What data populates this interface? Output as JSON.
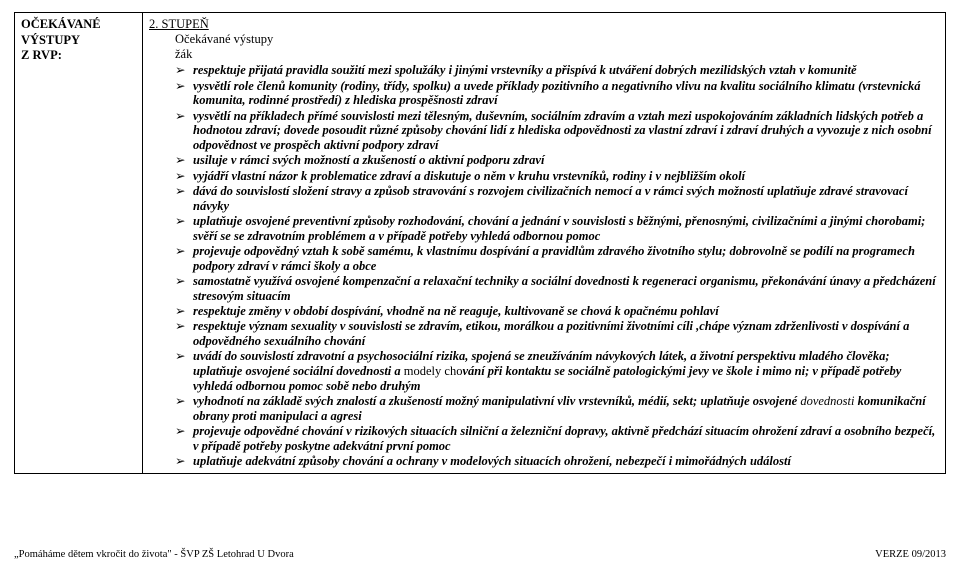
{
  "left": {
    "line1": "OČEKÁVANÉ VÝSTUPY",
    "line2": "Z RVP:"
  },
  "right": {
    "level": "2. STUPEŇ",
    "heading1": "Očekávané výstupy",
    "heading2": "žák",
    "items": [
      "respektuje přijatá pravidla soužití mezi spolužáky i jinými vrstevníky a přispívá k utváření dobrých mezilidských vztah v komunitě",
      "vysvětlí role členů komunity (rodiny, třídy, spolku) a uvede příklady pozitivního a negativního vlivu na kvalitu sociálního klimatu (vrstevnická komunita, rodinné prostředí) z hlediska prospěšnosti zdraví",
      "vysvětlí na příkladech přímé souvislosti mezi tělesným, duševním, sociálním zdravím a vztah mezi uspokojováním základních lidských potřeb a hodnotou zdraví; dovede posoudit různé způsoby chování lidí z hlediska odpovědnosti za vlastní zdraví i zdraví druhých a vyvozuje z nich osobní odpovědnost ve prospěch aktivní podpory zdraví",
      "usiluje v rámci svých možností a zkušeností o aktivní podporu zdraví",
      "vyjádří vlastní názor k problematice zdraví a diskutuje o něm v kruhu vrstevníků, rodiny i v nejbližším okolí",
      "dává do souvislostí složení stravy a způsob stravování s rozvojem civilizačních nemocí a v rámci svých možností uplatňuje zdravé stravovací návyky",
      "uplatňuje osvojené preventivní způsoby rozhodování, chování a jednání v souvislosti s běžnými, přenosnými, civilizačními a jinými chorobami; svěří se se zdravotním problémem a v případě potřeby vyhledá odbornou pomoc",
      "projevuje odpovědný vztah k sobě samému, k vlastnímu dospívání a pravidlům zdravého životního stylu; dobrovolně se podílí na programech podpory zdraví v rámci školy a obce",
      "samostatně využívá osvojené kompenzační a relaxační techniky a sociální dovednosti k regeneraci organismu, překonávání únavy a předcházení stresovým situacím",
      "respektuje změny v období dospívání, vhodně na ně reaguje, kultivovaně se chová k opačnému pohlaví",
      "respektuje význam sexuality v souvislosti se zdravím, etikou, morálkou a pozitivními životními cíli ,chápe význam zdrženlivosti v dospívání a odpovědného sexuálního chování",
      "uvádí do souvislostí zdravotní a psychosociální rizika, spojená se zneužíváním návykových látek, a životní perspektivu mladého člověka; uplatňuje osvojené sociální dovednosti a modely chování při kontaktu se sociálně patologickými jevy ve škole i mimo ni; v případě potřeby vyhledá odbornou pomoc sobě nebo druhým",
      "vyhodnotí na základě svých znalostí a zkušeností možný manipulativní vliv vrstevníků, médií, sekt; uplatňuje osvojené dovednosti komunikační obrany proti manipulaci a agresi",
      "projevuje odpovědné chování v rizikových situacích silniční a železniční dopravy, aktivně předchází situacím ohrožení zdraví a osobního bezpečí, v případě potřeby poskytne adekvátní první pomoc",
      "uplatňuje adekvátní způsoby chování a ochrany v modelových situacích ohrožení, nebezpečí i mimořádných událostí"
    ],
    "mixed": {
      "12_bold_a": "uvádí do souvislostí zdravotní a psychosociální rizika, spojená se zneužíváním návykových látek, a životní perspektivu mladého člověka; uplatňuje osvojené sociální dovednosti a ",
      "12_roman": "modely cho",
      "12_bold_b": "vání při kontaktu se sociálně patologickými jevy ve škole i mimo ni; v případě potřeby vyhledá odbornou pomoc sobě nebo druhým",
      "13_bold_a": "vyhodnotí na základě svých znalostí a zkušeností možný manipulativní vliv vrstevníků, médií, sekt; uplatňuje osvojené ",
      "13_roman_a": "dovednosti ",
      "13_bold_b": "komunikační obrany proti manipulaci a agresi"
    }
  },
  "footer": {
    "left": "„Pomáháme dětem vkročit do života\"  - ŠVP ZŠ Letohrad U Dvora",
    "right": "VERZE 09/2013"
  }
}
